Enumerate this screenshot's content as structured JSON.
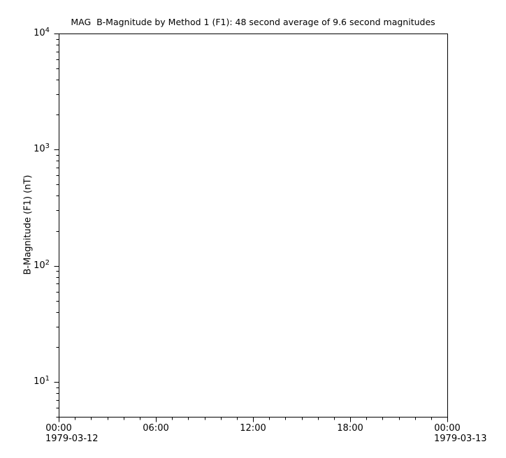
{
  "window": {
    "background": "#ffffff"
  },
  "chart_data": {
    "type": "line",
    "title": "MAG  B-Magnitude by Method 1 (F1): 48 second average of 9.6 second magnitudes",
    "xlabel": "",
    "ylabel": "B-Magnitude (F1) (nT)",
    "axis_color": "#000000",
    "text_color": "#000000",
    "plot_background": "#ffffff",
    "grid": false,
    "legend": false,
    "x_axis": {
      "type": "time",
      "span_hours": 24,
      "start_date": "1979-03-12",
      "end_date": "1979-03-13",
      "minor_tick_hours": 1,
      "major_ticks": [
        {
          "hour": 0,
          "label": "00:00",
          "date": "1979-03-12"
        },
        {
          "hour": 6,
          "label": "06:00"
        },
        {
          "hour": 12,
          "label": "12:00"
        },
        {
          "hour": 18,
          "label": "18:00"
        },
        {
          "hour": 24,
          "label": "00:00",
          "date": "1979-03-13"
        }
      ]
    },
    "y_axis": {
      "scale": "log",
      "min": 5,
      "max": 10000,
      "major_ticks": [
        {
          "value": 10,
          "base": "10",
          "exponent": "1"
        },
        {
          "value": 100,
          "base": "10",
          "exponent": "2"
        },
        {
          "value": 1000,
          "base": "10",
          "exponent": "3"
        },
        {
          "value": 10000,
          "base": "10",
          "exponent": "4"
        }
      ]
    },
    "series": []
  }
}
